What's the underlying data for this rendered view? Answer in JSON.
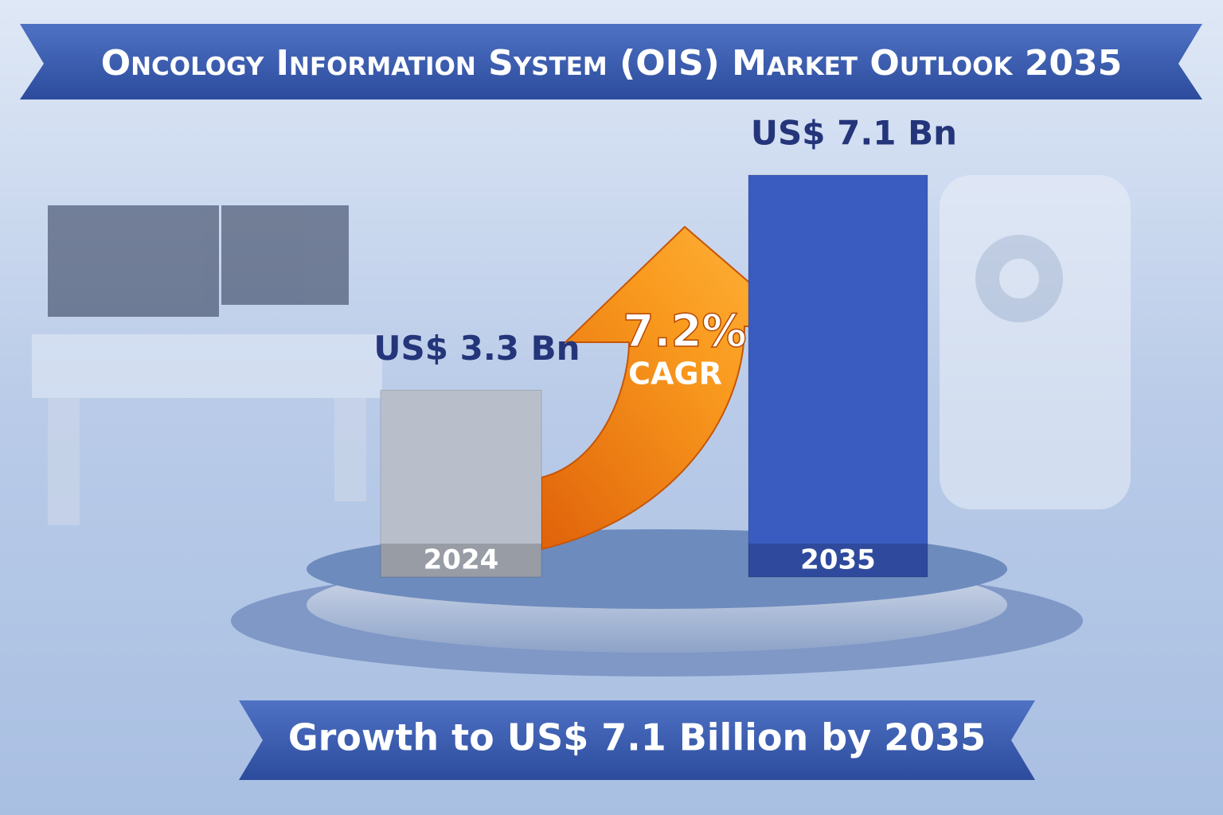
{
  "chart_data": {
    "type": "bar",
    "title": "Oncology Information System (OIS) Market Outlook 2035",
    "categories": [
      "2024",
      "2035"
    ],
    "values": [
      3.3,
      7.1
    ],
    "value_labels": [
      "US$ 3.3 Bn",
      "US$ 7.1 Bn"
    ],
    "colors": [
      "#b9bfca",
      "#3a5bbf"
    ],
    "annotations": [
      "7.2%",
      "CAGR"
    ],
    "subtitle": "Growth to US$ 7.1 Billion by 2035"
  }
}
